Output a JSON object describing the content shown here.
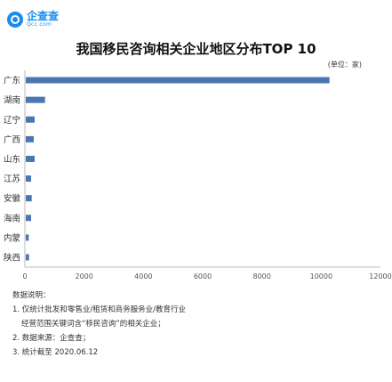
{
  "logo": {
    "name": "企查查",
    "url": "Qcc.com"
  },
  "chart_data": {
    "type": "bar",
    "orientation": "horizontal",
    "title": "我国移民咨询相关企业地区分布TOP 10",
    "unit_label": "(单位：家)",
    "categories": [
      "广东",
      "湖南",
      "辽宁",
      "广西",
      "山东",
      "江苏",
      "安徽",
      "海南",
      "内蒙",
      "陕西"
    ],
    "values": [
      10280,
      680,
      330,
      300,
      330,
      210,
      230,
      210,
      130,
      140
    ],
    "xlim": [
      0,
      12000
    ],
    "xticks": [
      "0",
      "2000",
      "4000",
      "6000",
      "8000",
      "10000",
      "12000"
    ],
    "bar_color": "#4a76b4",
    "grid": false
  },
  "notes": {
    "heading": "数据说明：",
    "line1": "1. 仅统计批发和零售业/租赁和商务服务业/教育行业",
    "line2": "经营范围关键词含“移民咨询”的相关企业；",
    "line3": "2. 数据来源：企查查；",
    "line4": "3. 统计截至 2020.06.12"
  }
}
